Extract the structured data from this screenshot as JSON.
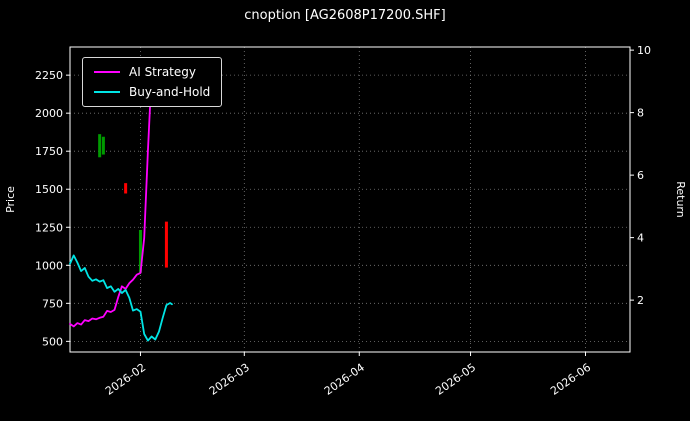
{
  "chart_data": {
    "type": "line",
    "title": "cnoption [AG2608P17200.SHF]",
    "background": "#000000",
    "grid": true,
    "legend_position": "upper-left",
    "x_domain_days": [
      0,
      151
    ],
    "x_ticks": [
      {
        "day": 19,
        "label": "2026-02"
      },
      {
        "day": 47,
        "label": "2026-03"
      },
      {
        "day": 78,
        "label": "2026-04"
      },
      {
        "day": 108,
        "label": "2026-05"
      },
      {
        "day": 139,
        "label": "2026-06"
      }
    ],
    "y_left": {
      "label": "Price",
      "ticks": [
        500,
        750,
        1000,
        1250,
        1500,
        1750,
        2000,
        2250
      ],
      "range": [
        430,
        2435
      ]
    },
    "y_right": {
      "label": "Return",
      "ticks": [
        2,
        4,
        6,
        8,
        10
      ],
      "range": [
        0.34,
        10.1
      ]
    },
    "legend": [
      {
        "name": "AI Strategy",
        "color": "#ff00ff"
      },
      {
        "name": "Buy-and-Hold",
        "color": "#00e5e5"
      }
    ],
    "series": [
      {
        "name": "AI Strategy",
        "color": "#ff00ff",
        "axis": "left",
        "points": [
          [
            0,
            615
          ],
          [
            1,
            598
          ],
          [
            2,
            620
          ],
          [
            3,
            610
          ],
          [
            4,
            640
          ],
          [
            5,
            633
          ],
          [
            6,
            650
          ],
          [
            7,
            645
          ],
          [
            8,
            655
          ],
          [
            9,
            662
          ],
          [
            10,
            700
          ],
          [
            11,
            693
          ],
          [
            12,
            707
          ],
          [
            13,
            790
          ],
          [
            14,
            862
          ],
          [
            15,
            845
          ],
          [
            16,
            882
          ],
          [
            17,
            905
          ],
          [
            18,
            938
          ],
          [
            19,
            950
          ],
          [
            20,
            1180
          ],
          [
            21,
            1750
          ],
          [
            22,
            2260
          ],
          [
            23,
            2330
          ],
          [
            24,
            2300
          ]
        ]
      },
      {
        "name": "Buy-and-Hold",
        "color": "#00e5e5",
        "axis": "left",
        "points": [
          [
            0,
            1010
          ],
          [
            1,
            1065
          ],
          [
            2,
            1018
          ],
          [
            3,
            962
          ],
          [
            4,
            982
          ],
          [
            5,
            925
          ],
          [
            6,
            898
          ],
          [
            7,
            908
          ],
          [
            8,
            893
          ],
          [
            9,
            902
          ],
          [
            10,
            850
          ],
          [
            11,
            862
          ],
          [
            12,
            826
          ],
          [
            13,
            845
          ],
          [
            14,
            818
          ],
          [
            15,
            838
          ],
          [
            16,
            786
          ],
          [
            17,
            702
          ],
          [
            18,
            712
          ],
          [
            19,
            695
          ],
          [
            20,
            548
          ],
          [
            21,
            505
          ],
          [
            22,
            532
          ],
          [
            23,
            512
          ],
          [
            24,
            565
          ],
          [
            25,
            655
          ],
          [
            26,
            738
          ],
          [
            27,
            752
          ],
          [
            27.5,
            744
          ]
        ]
      }
    ],
    "candles": [
      {
        "x": 8,
        "low": 1710,
        "high": 1862,
        "color": "#009b00"
      },
      {
        "x": 9,
        "low": 1728,
        "high": 1845,
        "color": "#009b00"
      },
      {
        "x": 15,
        "low": 1472,
        "high": 1540,
        "color": "#ff0000"
      },
      {
        "x": 19,
        "low": 952,
        "high": 1232,
        "color": "#009b00"
      },
      {
        "x": 26,
        "low": 985,
        "high": 1287,
        "color": "#ff0000"
      }
    ]
  }
}
